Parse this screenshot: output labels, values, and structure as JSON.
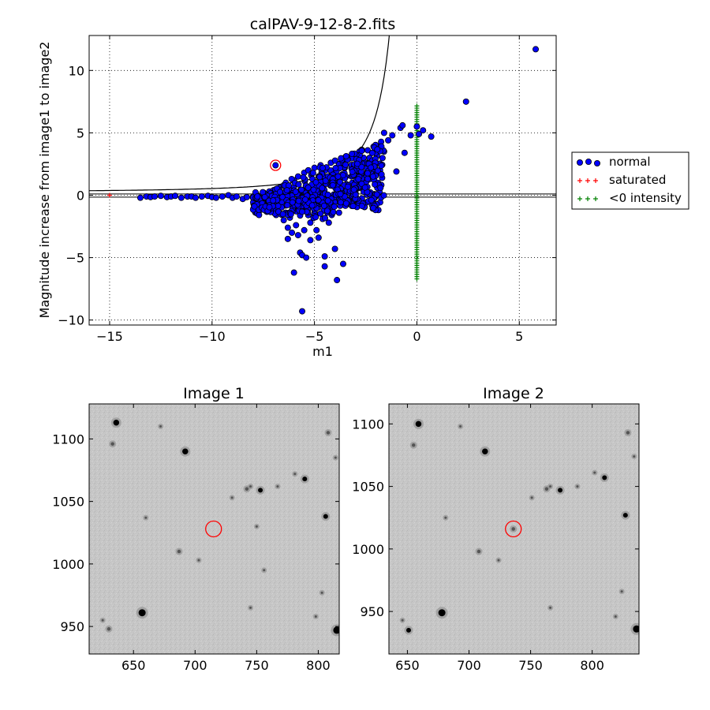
{
  "chart_data": [
    {
      "type": "scatter",
      "title": "calPAV-9-12-8-2.fits",
      "xlabel": "m1",
      "ylabel": "Magnitude increase from image1 to image2",
      "xlim": [
        -16,
        6.8
      ],
      "ylim": [
        -10.4,
        12.8
      ],
      "xticks": [
        -15,
        -10,
        -5,
        0,
        5
      ],
      "yticks": [
        -10,
        -5,
        0,
        5,
        10
      ],
      "xtick_labels": [
        "−15",
        "−10",
        "−5",
        "0",
        "5"
      ],
      "ytick_labels": [
        "−10",
        "−5",
        "0",
        "5",
        "10"
      ],
      "grid": true,
      "legend_position": "outside-right",
      "legend": [
        {
          "label": "normal",
          "marker": "circle",
          "color": "#0000ff"
        },
        {
          "label": "saturated",
          "marker": "plus",
          "color": "#ff0000"
        },
        {
          "label": "<0 intensity",
          "marker": "plus",
          "color": "#008000"
        }
      ],
      "reference_lines": [
        {
          "type": "horizontal",
          "y": -0.15
        },
        {
          "type": "horizontal",
          "y": 0.1
        },
        {
          "type": "exponential_curve",
          "desc": "error envelope rising steeply toward m1 = -0.5"
        }
      ],
      "highlighted_point": {
        "x": -6.9,
        "y": 2.4
      },
      "series": [
        {
          "name": "normal",
          "color": "#0000ff",
          "points": [
            [
              -13.5,
              -0.2
            ],
            [
              -13.2,
              -0.1
            ],
            [
              -13.0,
              -0.15
            ],
            [
              -12.8,
              -0.1
            ],
            [
              -12.5,
              -0.05
            ],
            [
              -12.2,
              -0.15
            ],
            [
              -12.0,
              -0.1
            ],
            [
              -11.8,
              -0.05
            ],
            [
              -11.5,
              -0.2
            ],
            [
              -11.2,
              -0.1
            ],
            [
              -11.0,
              -0.1
            ],
            [
              -10.8,
              -0.2
            ],
            [
              -10.5,
              -0.1
            ],
            [
              -10.2,
              -0.05
            ],
            [
              -10.0,
              -0.15
            ],
            [
              -9.8,
              -0.2
            ],
            [
              -9.5,
              -0.1
            ],
            [
              -9.2,
              0.0
            ],
            [
              -9.0,
              -0.2
            ],
            [
              -8.8,
              -0.1
            ],
            [
              -8.5,
              -0.3
            ],
            [
              -8.3,
              -0.15
            ],
            [
              -8.0,
              -0.2
            ],
            [
              -7.8,
              0.0
            ],
            [
              -7.6,
              -0.4
            ],
            [
              -7.5,
              0.2
            ],
            [
              -7.3,
              -0.5
            ],
            [
              -7.2,
              0.3
            ],
            [
              -7.0,
              -0.8
            ],
            [
              -7.0,
              0.4
            ],
            [
              -6.9,
              2.4
            ],
            [
              -6.8,
              -1.2
            ],
            [
              -6.7,
              0.6
            ],
            [
              -6.6,
              -1.5
            ],
            [
              -6.5,
              0.8
            ],
            [
              -6.5,
              -2.0
            ],
            [
              -6.4,
              1.0
            ],
            [
              -6.3,
              -2.6
            ],
            [
              -6.3,
              -3.5
            ],
            [
              -6.2,
              0.5
            ],
            [
              -6.2,
              -1.8
            ],
            [
              -6.1,
              -3.0
            ],
            [
              -6.0,
              1.2
            ],
            [
              -6.0,
              -6.2
            ],
            [
              -5.9,
              -2.4
            ],
            [
              -5.8,
              1.5
            ],
            [
              -5.8,
              -3.2
            ],
            [
              -5.7,
              -4.6
            ],
            [
              -5.7,
              0.0
            ],
            [
              -5.6,
              -4.8
            ],
            [
              -5.6,
              -9.3
            ],
            [
              -5.5,
              1.8
            ],
            [
              -5.5,
              -2.8
            ],
            [
              -5.4,
              -1.0
            ],
            [
              -5.4,
              -5.0
            ],
            [
              -5.3,
              2.0
            ],
            [
              -5.2,
              -2.2
            ],
            [
              -5.2,
              -3.6
            ],
            [
              -5.1,
              0.8
            ],
            [
              -5.0,
              2.2
            ],
            [
              -5.0,
              -1.5
            ],
            [
              -4.9,
              -2.8
            ],
            [
              -4.8,
              1.5
            ],
            [
              -4.8,
              -3.4
            ],
            [
              -4.7,
              2.4
            ],
            [
              -4.6,
              -0.5
            ],
            [
              -4.6,
              -1.9
            ],
            [
              -4.5,
              -4.9
            ],
            [
              -4.5,
              -5.7
            ],
            [
              -4.4,
              1.0
            ],
            [
              -4.3,
              -2.2
            ],
            [
              -4.2,
              2.6
            ],
            [
              -4.2,
              -0.8
            ],
            [
              -4.0,
              -4.3
            ],
            [
              -4.0,
              1.8
            ],
            [
              -3.9,
              -6.8
            ],
            [
              -3.8,
              2.5
            ],
            [
              -3.8,
              -1.4
            ],
            [
              -3.6,
              -5.5
            ],
            [
              -3.6,
              2.8
            ],
            [
              -3.5,
              0.3
            ],
            [
              -3.4,
              3.0
            ],
            [
              -3.4,
              -0.5
            ],
            [
              -3.2,
              2.2
            ],
            [
              -3.2,
              -0.1
            ],
            [
              -3.0,
              3.2
            ],
            [
              -3.0,
              1.0
            ],
            [
              -2.8,
              3.5
            ],
            [
              -2.8,
              0.6
            ],
            [
              -2.6,
              3.0
            ],
            [
              -2.6,
              1.5
            ],
            [
              -2.4,
              3.6
            ],
            [
              -2.4,
              0.2
            ],
            [
              -2.2,
              2.8
            ],
            [
              -2.2,
              -0.1
            ],
            [
              -2.0,
              3.8
            ],
            [
              -2.0,
              1.8
            ],
            [
              -1.8,
              2.0
            ],
            [
              -1.6,
              5.0
            ],
            [
              -1.6,
              3.5
            ],
            [
              -1.4,
              4.4
            ],
            [
              -1.2,
              4.8
            ],
            [
              -1.0,
              1.9
            ],
            [
              -0.8,
              5.4
            ],
            [
              -0.7,
              5.6
            ],
            [
              -0.6,
              3.4
            ],
            [
              -0.3,
              4.8
            ],
            [
              0.0,
              5.5
            ],
            [
              0.1,
              4.9
            ],
            [
              0.3,
              5.2
            ],
            [
              0.7,
              4.7
            ],
            [
              2.4,
              7.5
            ],
            [
              5.8,
              11.7
            ]
          ]
        },
        {
          "name": "saturated",
          "color": "#ff0000",
          "points": [
            [
              -15.0,
              0.0
            ]
          ]
        },
        {
          "name": "<0 intensity",
          "color": "#008000",
          "x": 0,
          "y_range": [
            -6.7,
            7.2
          ]
        }
      ]
    },
    {
      "type": "image",
      "title": "Image 1",
      "xlim": [
        614,
        817
      ],
      "ylim": [
        928,
        1128
      ],
      "xticks": [
        650,
        700,
        750,
        800
      ],
      "yticks": [
        950,
        1000,
        1050,
        1100
      ],
      "marker": {
        "x": 715,
        "y": 1028
      },
      "stars": [
        [
          636,
          1113,
          5
        ],
        [
          633,
          1096,
          3
        ],
        [
          692,
          1090,
          5
        ],
        [
          660,
          1037,
          2
        ],
        [
          753,
          1059,
          4
        ],
        [
          742,
          1060,
          3
        ],
        [
          745,
          1062,
          2
        ],
        [
          767,
          1062,
          2
        ],
        [
          789,
          1068,
          4
        ],
        [
          781,
          1072,
          2
        ],
        [
          808,
          1105,
          3
        ],
        [
          814,
          1085,
          2
        ],
        [
          806,
          1038,
          4
        ],
        [
          750,
          1030,
          2
        ],
        [
          687,
          1010,
          3
        ],
        [
          657,
          961,
          6
        ],
        [
          630,
          948,
          3
        ],
        [
          815,
          947,
          6
        ],
        [
          803,
          977,
          2
        ],
        [
          798,
          958,
          2
        ],
        [
          625,
          955,
          2
        ],
        [
          745,
          965,
          2
        ],
        [
          672,
          1110,
          2
        ],
        [
          703,
          1003,
          2
        ],
        [
          730,
          1053,
          2
        ],
        [
          756,
          995,
          2
        ]
      ]
    },
    {
      "type": "image",
      "title": "Image 2",
      "xlim": [
        635,
        838
      ],
      "ylim": [
        916,
        1116
      ],
      "xticks": [
        650,
        700,
        750,
        800
      ],
      "yticks": [
        950,
        1000,
        1050,
        1100
      ],
      "marker": {
        "x": 736,
        "y": 1016
      },
      "stars": [
        [
          659,
          1100,
          5
        ],
        [
          655,
          1083,
          3
        ],
        [
          713,
          1078,
          5
        ],
        [
          681,
          1025,
          2
        ],
        [
          774,
          1047,
          4
        ],
        [
          763,
          1048,
          3
        ],
        [
          766,
          1050,
          2
        ],
        [
          788,
          1050,
          2
        ],
        [
          810,
          1057,
          4
        ],
        [
          802,
          1061,
          2
        ],
        [
          829,
          1093,
          3
        ],
        [
          834,
          1074,
          2
        ],
        [
          827,
          1027,
          4
        ],
        [
          736,
          1016,
          3
        ],
        [
          708,
          998,
          3
        ],
        [
          678,
          949,
          6
        ],
        [
          651,
          935,
          4
        ],
        [
          836,
          936,
          6
        ],
        [
          824,
          966,
          2
        ],
        [
          819,
          946,
          2
        ],
        [
          646,
          943,
          2
        ],
        [
          766,
          953,
          2
        ],
        [
          693,
          1098,
          2
        ],
        [
          724,
          991,
          2
        ],
        [
          751,
          1041,
          2
        ]
      ]
    }
  ]
}
